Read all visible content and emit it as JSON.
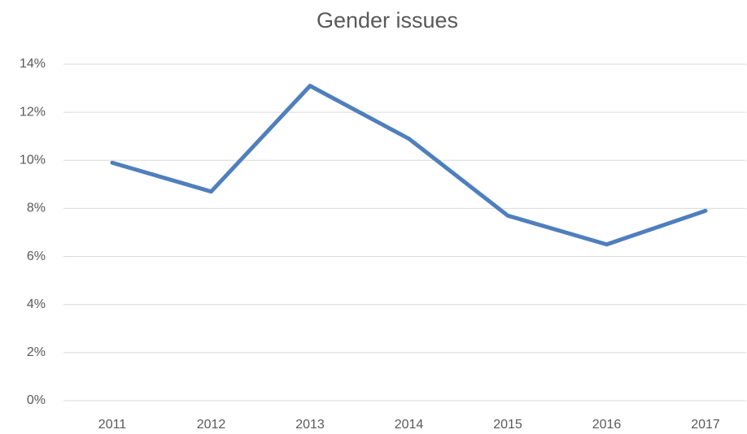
{
  "chart_data": {
    "type": "line",
    "title": "Gender issues",
    "categories": [
      "2011",
      "2012",
      "2013",
      "2014",
      "2015",
      "2016",
      "2017"
    ],
    "series": [
      {
        "name": "Gender issues",
        "color": "#4f7fbc",
        "values": [
          9.9,
          8.7,
          13.1,
          10.9,
          7.7,
          6.5,
          7.9
        ]
      }
    ],
    "ylim": [
      0,
      14
    ],
    "yticks": [
      {
        "value": 0,
        "label": "0%"
      },
      {
        "value": 2,
        "label": "2%"
      },
      {
        "value": 4,
        "label": "4%"
      },
      {
        "value": 6,
        "label": "6%"
      },
      {
        "value": 8,
        "label": "8%"
      },
      {
        "value": 10,
        "label": "10%"
      },
      {
        "value": 12,
        "label": "12%"
      },
      {
        "value": 14,
        "label": "14%"
      }
    ],
    "grid": true
  }
}
